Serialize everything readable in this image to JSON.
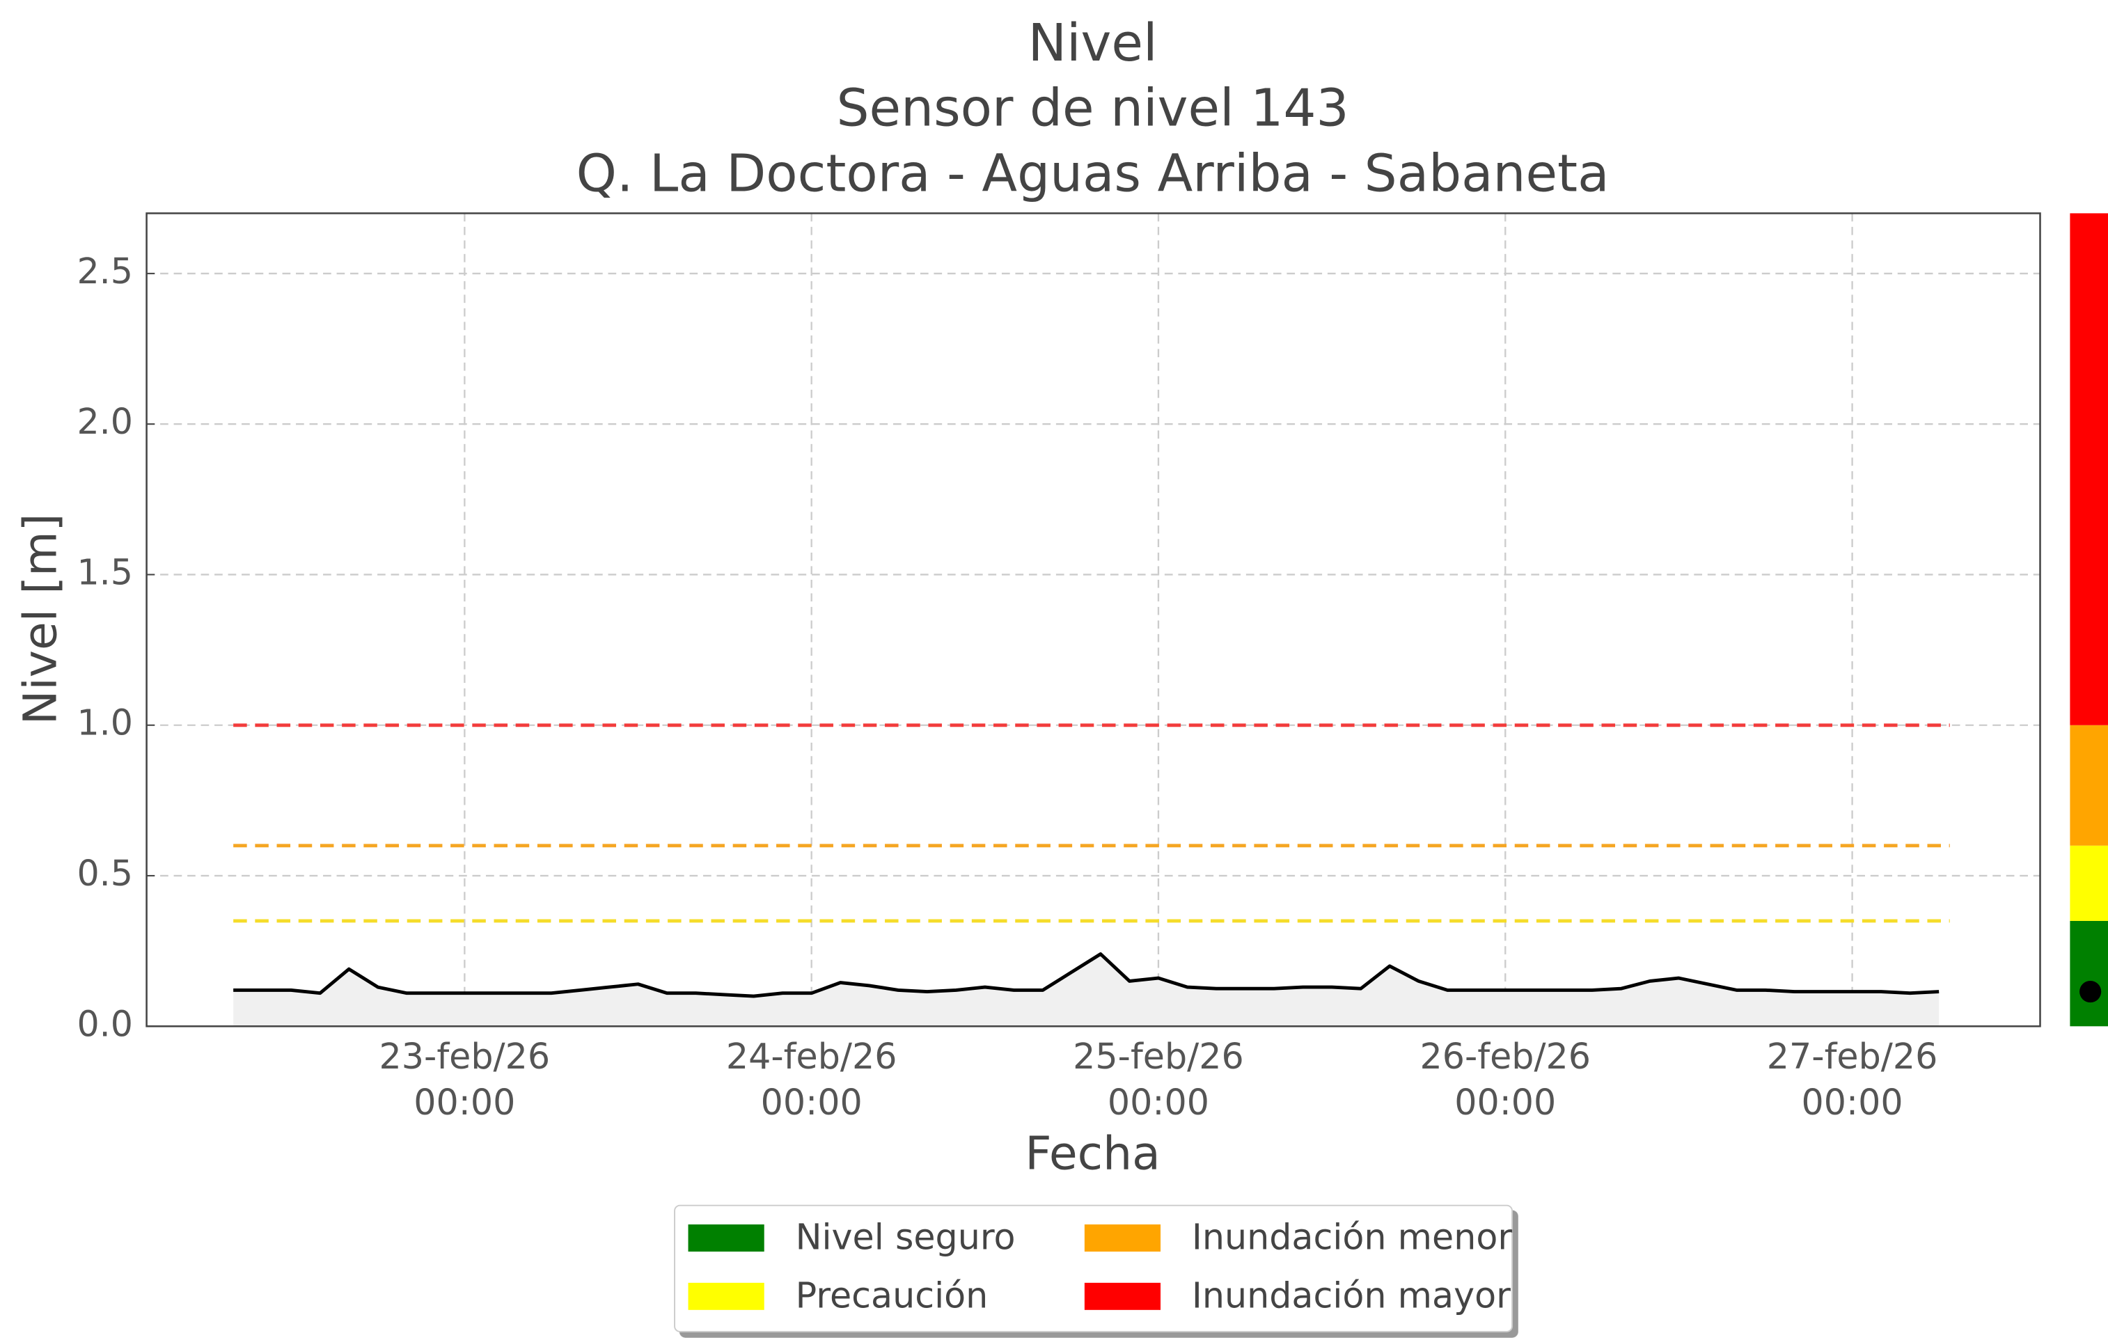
{
  "chart_data": {
    "type": "line",
    "title": "Nivel",
    "subtitle": "Sensor de nivel 143",
    "location": "Q. La Doctora - Aguas Arriba - Sabaneta",
    "xlabel": "Fecha",
    "ylabel": "Nivel [m]",
    "x": [
      "2026-02-22 08:00",
      "2026-02-22 10:00",
      "2026-02-22 12:00",
      "2026-02-22 14:00",
      "2026-02-22 16:00",
      "2026-02-22 18:00",
      "2026-02-22 20:00",
      "2026-02-22 22:00",
      "2026-02-23 00:00",
      "2026-02-23 02:00",
      "2026-02-23 04:00",
      "2026-02-23 06:00",
      "2026-02-23 08:00",
      "2026-02-23 10:00",
      "2026-02-23 12:00",
      "2026-02-23 14:00",
      "2026-02-23 16:00",
      "2026-02-23 18:00",
      "2026-02-23 20:00",
      "2026-02-23 22:00",
      "2026-02-24 00:00",
      "2026-02-24 02:00",
      "2026-02-24 04:00",
      "2026-02-24 06:00",
      "2026-02-24 08:00",
      "2026-02-24 10:00",
      "2026-02-24 12:00",
      "2026-02-24 14:00",
      "2026-02-24 16:00",
      "2026-02-24 18:00",
      "2026-02-24 20:00",
      "2026-02-24 22:00",
      "2026-02-25 00:00",
      "2026-02-25 02:00",
      "2026-02-25 04:00",
      "2026-02-25 06:00",
      "2026-02-25 08:00",
      "2026-02-25 10:00",
      "2026-02-25 12:00",
      "2026-02-25 14:00",
      "2026-02-25 16:00",
      "2026-02-25 18:00",
      "2026-02-25 20:00",
      "2026-02-25 22:00",
      "2026-02-26 00:00",
      "2026-02-26 02:00",
      "2026-02-26 04:00",
      "2026-02-26 06:00",
      "2026-02-26 08:00",
      "2026-02-26 10:00",
      "2026-02-26 12:00",
      "2026-02-26 14:00",
      "2026-02-26 16:00",
      "2026-02-26 18:00",
      "2026-02-26 20:00",
      "2026-02-26 22:00",
      "2026-02-27 00:00",
      "2026-02-27 02:00",
      "2026-02-27 04:00",
      "2026-02-27 06:00"
    ],
    "values": [
      0.12,
      0.12,
      0.12,
      0.11,
      0.19,
      0.13,
      0.11,
      0.11,
      0.11,
      0.11,
      0.11,
      0.11,
      0.12,
      0.13,
      0.14,
      0.11,
      0.11,
      0.105,
      0.1,
      0.11,
      0.11,
      0.145,
      0.135,
      0.12,
      0.115,
      0.12,
      0.13,
      0.12,
      0.12,
      0.18,
      0.24,
      0.15,
      0.16,
      0.13,
      0.125,
      0.125,
      0.125,
      0.13,
      0.13,
      0.125,
      0.2,
      0.15,
      0.12,
      0.12,
      0.12,
      0.12,
      0.12,
      0.12,
      0.125,
      0.15,
      0.16,
      0.14,
      0.12,
      0.12,
      0.115,
      0.115,
      0.115,
      0.115,
      0.11,
      0.115
    ],
    "color": "#000000",
    "area_color": "#f0f0f0",
    "xlim": [
      "2026-02-22 02:00",
      "2026-02-27 13:00"
    ],
    "xticks": [
      {
        "value": "2026-02-23 00:00",
        "label": "23-feb/26\n00:00"
      },
      {
        "value": "2026-02-24 00:00",
        "label": "24-feb/26\n00:00"
      },
      {
        "value": "2026-02-25 00:00",
        "label": "25-feb/26\n00:00"
      },
      {
        "value": "2026-02-26 00:00",
        "label": "26-feb/26\n00:00"
      },
      {
        "value": "2026-02-27 00:00",
        "label": "27-feb/26\n00:00"
      }
    ],
    "ylim": [
      0,
      2.7
    ],
    "yticks": [
      {
        "value": 0,
        "label": "0.0"
      },
      0.5,
      {
        "value": 1,
        "label": "1.0"
      },
      1.5,
      {
        "value": 2,
        "label": "2.0"
      },
      2.5
    ],
    "grid": true,
    "levels": [
      {
        "name": "Nivel seguro",
        "color": "#008000",
        "from": 0
      },
      {
        "name": "Precaución",
        "color": "#ffff00",
        "from": 0.35
      },
      {
        "name": "Inundación menor",
        "color": "#ffa500",
        "from": 0.6
      },
      {
        "name": "Inundación mayor",
        "color": "#ff0000",
        "from": 1.0
      }
    ],
    "threshold_colors": [
      "#f5dc2a",
      "#f5a623",
      "#f23c3c"
    ]
  }
}
